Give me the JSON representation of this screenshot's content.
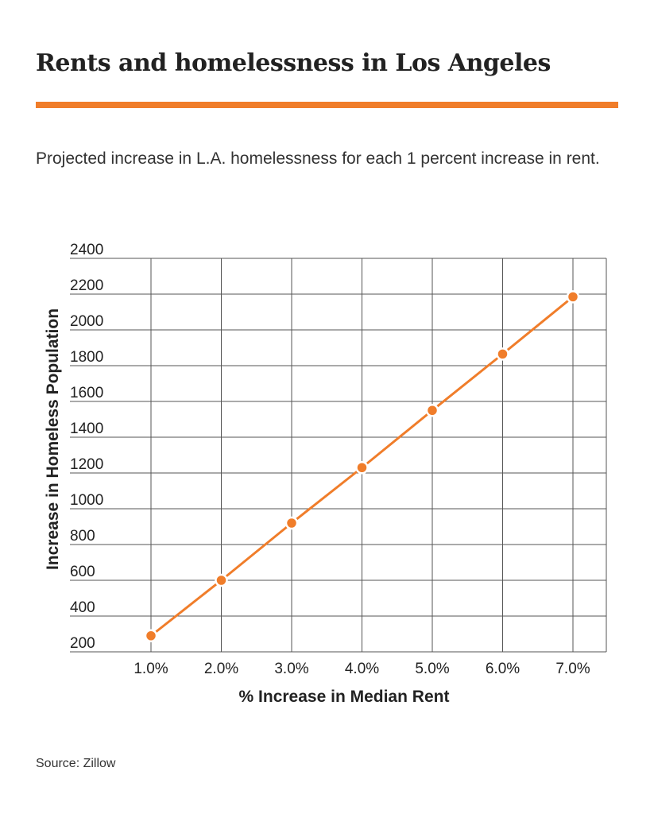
{
  "title": "Rents and homelessness in Los Angeles",
  "subtitle": "Projected increase in L.A. homelessness for each 1 percent increase in rent.",
  "source": "Source: Zillow",
  "colors": {
    "accent": "#f07d2a",
    "line": "#f07d2a",
    "grid": "#555555",
    "text": "#222222"
  },
  "chart_data": {
    "type": "line",
    "title": "",
    "xlabel": "% Increase in Median Rent",
    "ylabel": "Increase in Homeless Population",
    "categories": [
      "1.0%",
      "2.0%",
      "3.0%",
      "4.0%",
      "5.0%",
      "6.0%",
      "7.0%"
    ],
    "x": [
      1.0,
      2.0,
      3.0,
      4.0,
      5.0,
      6.0,
      7.0
    ],
    "values": [
      290,
      600,
      920,
      1230,
      1550,
      1865,
      2185
    ],
    "yticks": [
      200,
      400,
      600,
      800,
      1000,
      1200,
      1400,
      1600,
      1800,
      2000,
      2200,
      2400
    ],
    "ylim": [
      200,
      2400
    ],
    "grid": true,
    "legend": "none"
  }
}
